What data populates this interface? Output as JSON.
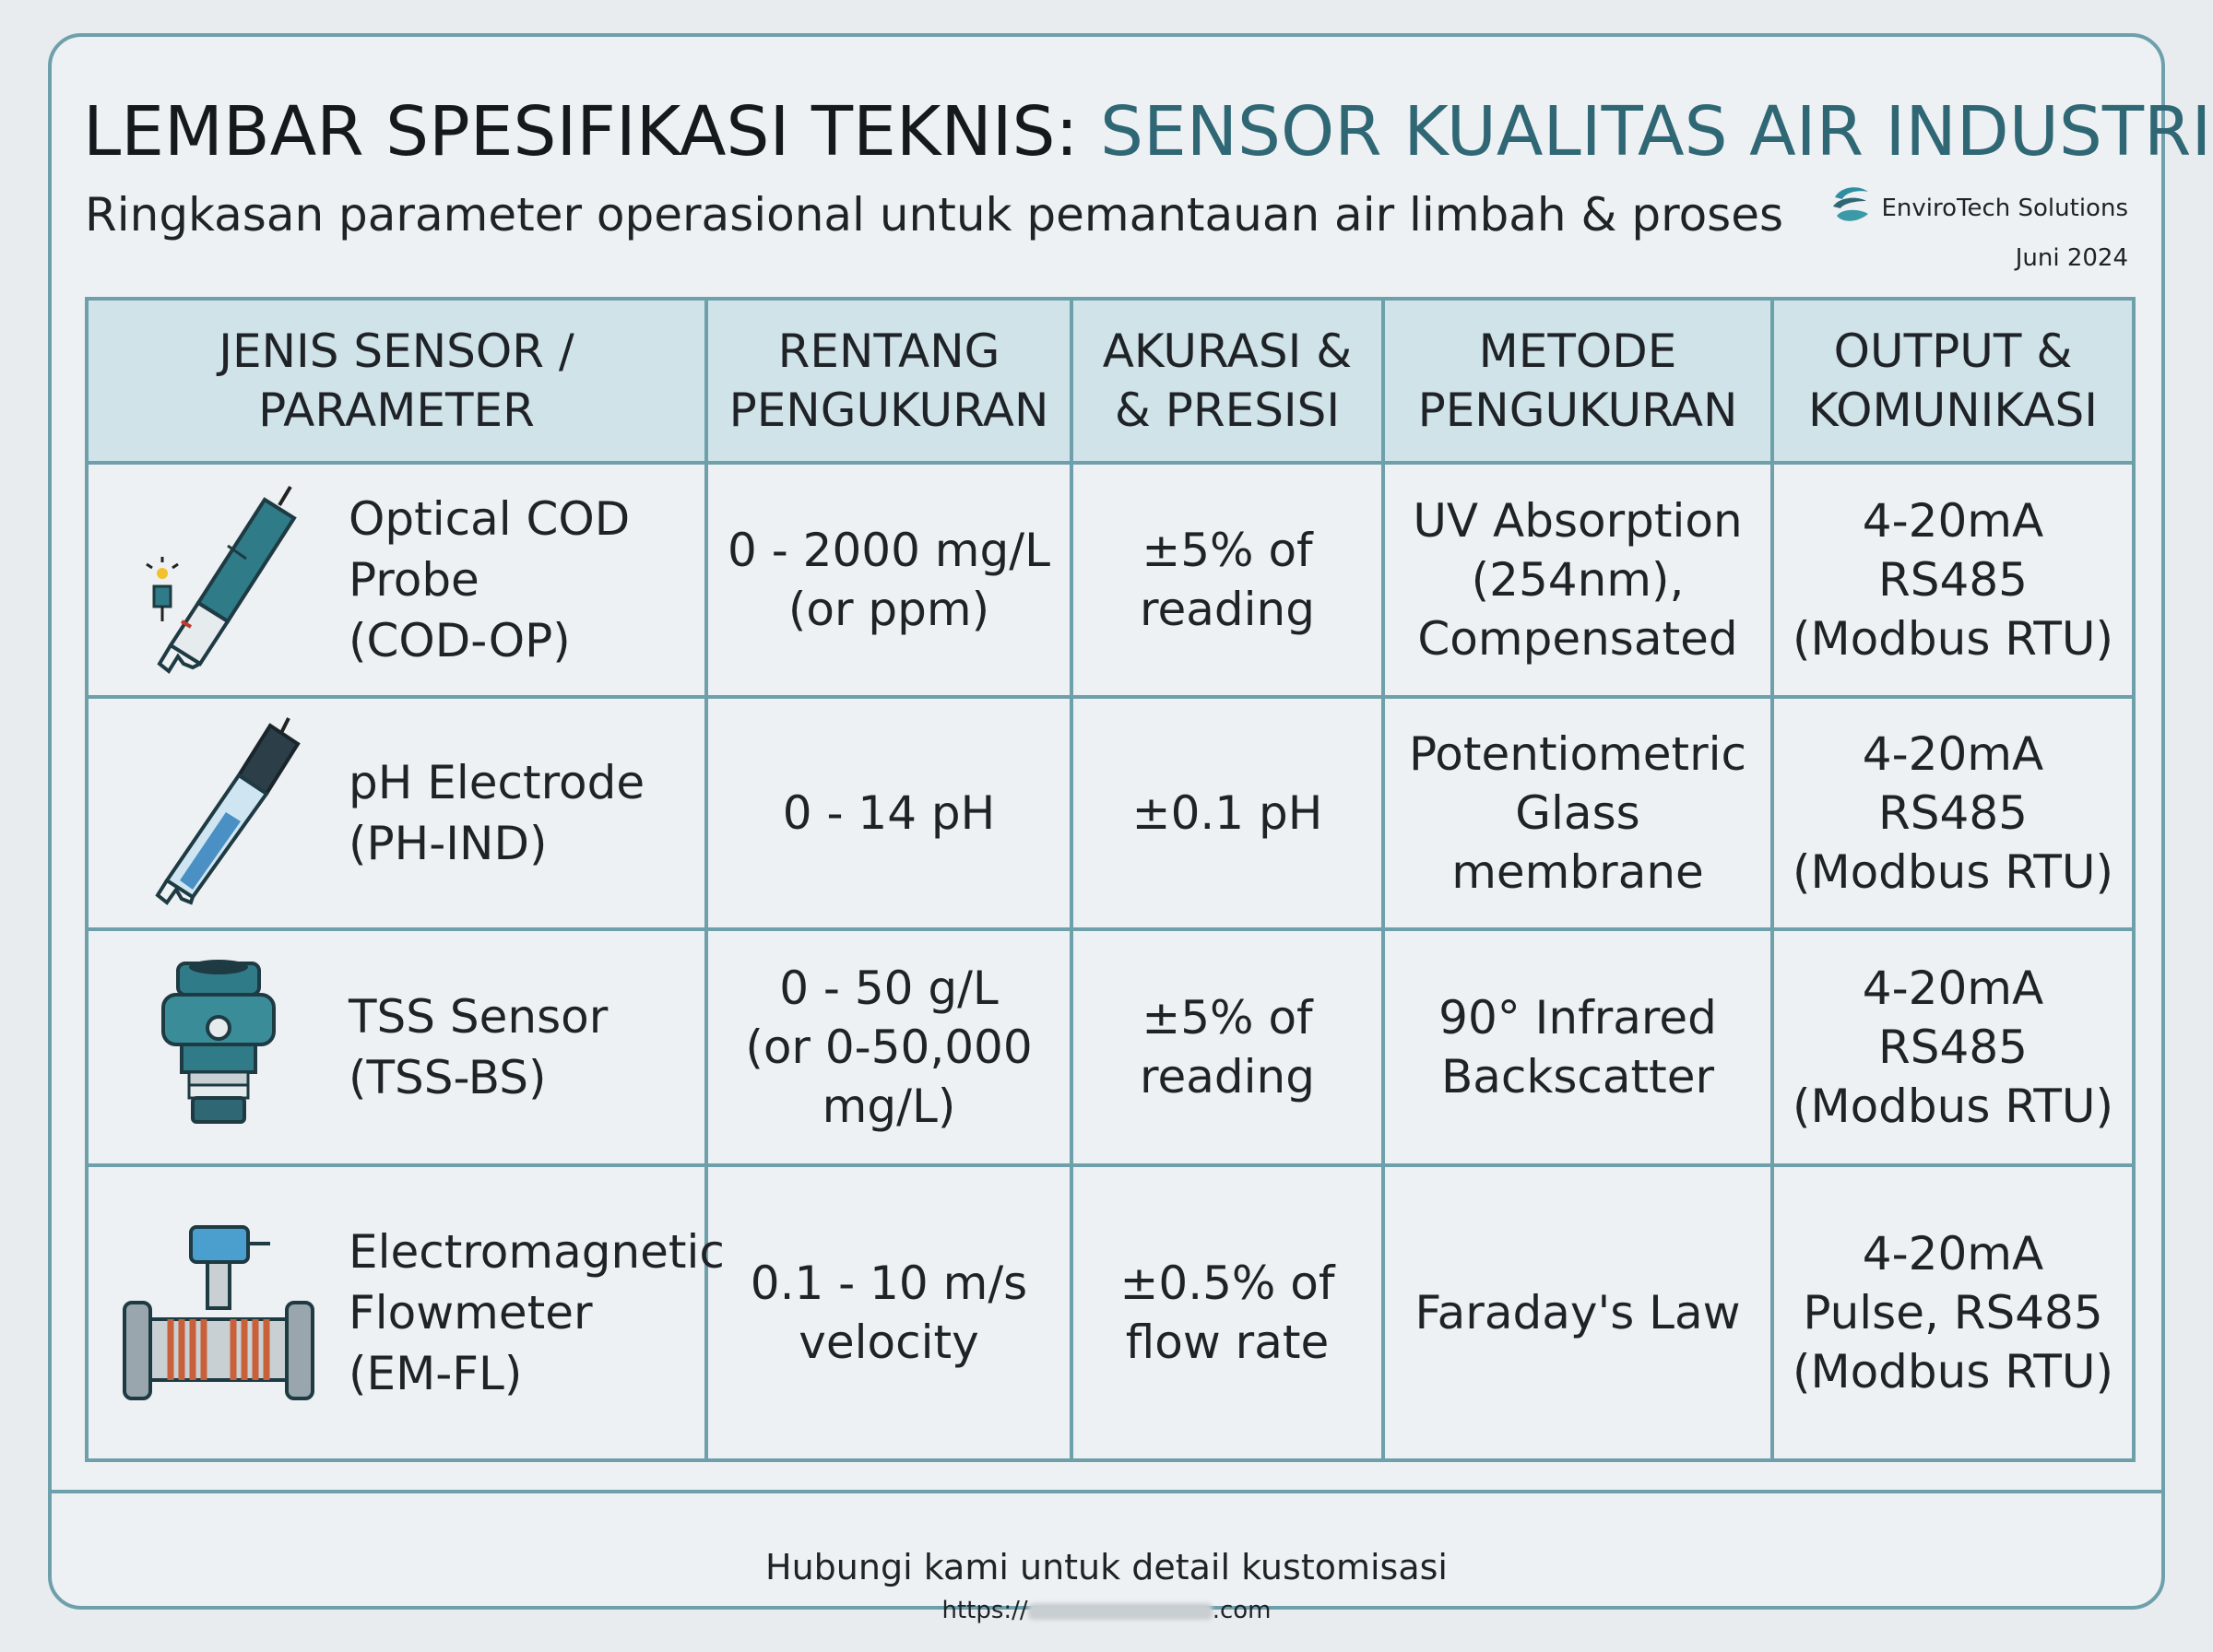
{
  "header": {
    "title_plain": "LEMBAR SPESIFIKASI TEKNIS: ",
    "title_accent": "SENSOR KUALITAS AIR INDUSTRI",
    "subtitle": "Ringkasan parameter operasional untuk pemantauan air limbah & proses",
    "brand_name": "EnviroTech Solutions",
    "date": "Juni 2024"
  },
  "table": {
    "headers": [
      "JENIS SENSOR /\nPARAMETER",
      "RENTANG\nPENGUKURAN",
      "AKURASI &\n& PRESISI",
      "METODE\nPENGUKURAN",
      "OUTPUT &\nKOMUNIKASI"
    ],
    "rows": [
      {
        "icon": "cod-probe-icon",
        "sensor": "Optical COD\nProbe\n(COD-OP)",
        "range": "0 - 2000 mg/L\n(or ppm)",
        "accuracy": "±5% of\nreading",
        "method": "UV Absorption\n(254nm),\nCompensated",
        "output": "4-20mA\nRS485\n(Modbus RTU)"
      },
      {
        "icon": "ph-electrode-icon",
        "sensor": "pH Electrode\n(PH-IND)",
        "range": "0 - 14 pH",
        "accuracy": "±0.1 pH",
        "method": "Potentiometric\nGlass membrane",
        "output": "4-20mA\nRS485\n(Modbus RTU)"
      },
      {
        "icon": "tss-sensor-icon",
        "sensor": "TSS Sensor\n(TSS-BS)",
        "range": "0 - 50 g/L\n(or 0-50,000\nmg/L)",
        "accuracy": "±5% of\nreading",
        "method": "90° Infrared\nBackscatter",
        "output": "4-20mA\nRS485\n(Modbus RTU)"
      },
      {
        "icon": "flowmeter-icon",
        "sensor": "Electromagnetic\nFlowmeter\n(EM-FL)",
        "range": "0.1 - 10 m/s\nvelocity",
        "accuracy": "±0.5% of\nflow rate",
        "method": "Faraday's Law",
        "output": "4-20mA\nPulse, RS485\n(Modbus RTU)"
      }
    ]
  },
  "footer": {
    "contact": "Hubungi kami untuk detail kustomisasi",
    "url_prefix": "https://",
    "url_suffix": ".com"
  },
  "colors": {
    "accent": "#2f6775",
    "border": "#6ea0ac",
    "header_fill": "#cfe3e8",
    "background": "#eef1f3"
  }
}
